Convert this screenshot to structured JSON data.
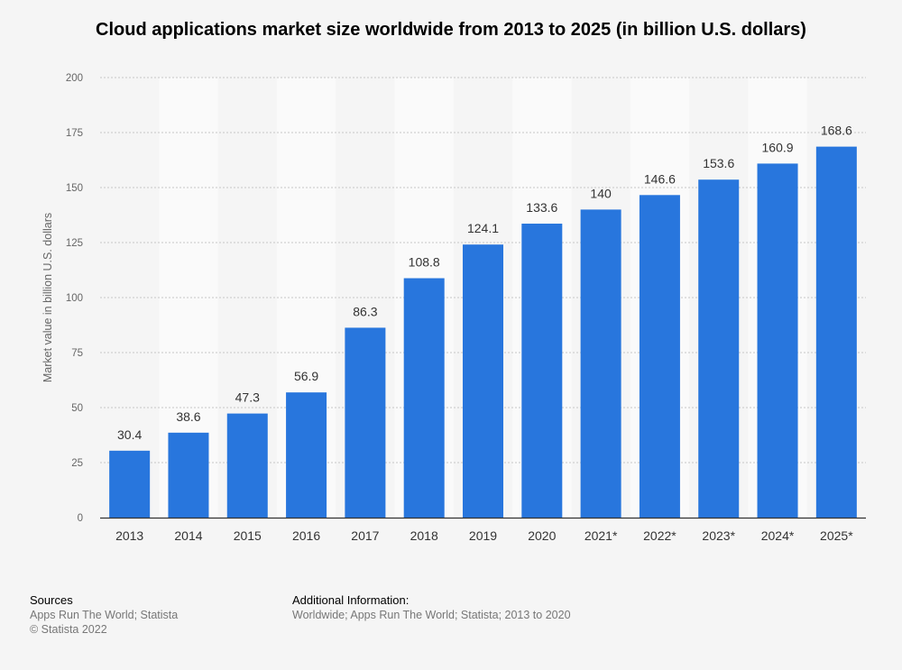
{
  "chart_data": {
    "type": "bar",
    "title": "Cloud applications market size worldwide from 2013 to 2025 (in billion U.S. dollars)",
    "xlabel": "",
    "ylabel": "Market value in billion U.S. dollars",
    "categories": [
      "2013",
      "2014",
      "2015",
      "2016",
      "2017",
      "2018",
      "2019",
      "2020",
      "2021*",
      "2022*",
      "2023*",
      "2024*",
      "2025*"
    ],
    "values": [
      30.4,
      38.6,
      47.3,
      56.9,
      86.3,
      108.8,
      124.1,
      133.6,
      140,
      146.6,
      153.6,
      160.9,
      168.6
    ],
    "value_labels": [
      "30.4",
      "38.6",
      "47.3",
      "56.9",
      "86.3",
      "108.8",
      "124.1",
      "133.6",
      "140",
      "146.6",
      "153.6",
      "160.9",
      "168.6"
    ],
    "ylim": [
      0,
      200
    ],
    "yticks": [
      0,
      25,
      50,
      75,
      100,
      125,
      150,
      175,
      200
    ],
    "grid": true,
    "bar_color": "#2876dd"
  },
  "footer": {
    "sources_heading": "Sources",
    "sources_text": "Apps Run The World; Statista",
    "copyright": "© Statista 2022",
    "additional_heading": "Additional Information:",
    "additional_text": "Worldwide; Apps Run The World; Statista; 2013 to 2020"
  }
}
